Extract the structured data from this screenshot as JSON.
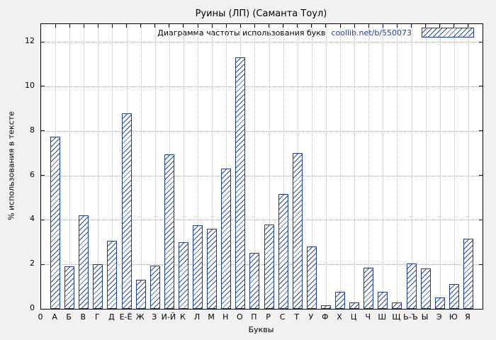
{
  "window": {
    "title": "Руины (ЛП) (Саманта Тоул)"
  },
  "chart_data": {
    "type": "bar",
    "title": "Руины (ЛП) (Саманта Тоул)",
    "legend": {
      "label": "Диаграмма частоты использования букв",
      "url": "coollib.net/b/550073",
      "position": "top-right-inside"
    },
    "xlabel": "Буквы",
    "ylabel": "% использования в тексте",
    "origin_label": "0",
    "categories": [
      "А",
      "Б",
      "В",
      "Г",
      "Д",
      "Е-Ё",
      "Ж",
      "З",
      "И-Й",
      "К",
      "Л",
      "М",
      "Н",
      "О",
      "П",
      "Р",
      "С",
      "Т",
      "У",
      "Ф",
      "Х",
      "Ц",
      "Ч",
      "Ш",
      "Щ",
      "Ь-Ъ",
      "Ы",
      "Э",
      "Ю",
      "Я"
    ],
    "values": [
      7.75,
      1.9,
      4.2,
      2.0,
      3.05,
      8.8,
      1.3,
      1.95,
      6.95,
      3.0,
      3.75,
      3.6,
      6.3,
      11.3,
      2.5,
      3.8,
      5.15,
      7.0,
      2.8,
      0.15,
      0.75,
      0.3,
      1.85,
      0.75,
      0.3,
      2.05,
      1.8,
      0.5,
      1.1,
      3.15
    ],
    "yticks": [
      0,
      2,
      4,
      6,
      8,
      10,
      12
    ],
    "ylim": [
      0,
      12.8
    ],
    "grid": true,
    "bar_color": "#2a4d9b",
    "bar_border_color": "#1c3f94",
    "plot_background": "#ffffff",
    "page_background": "#f1f1f1"
  }
}
